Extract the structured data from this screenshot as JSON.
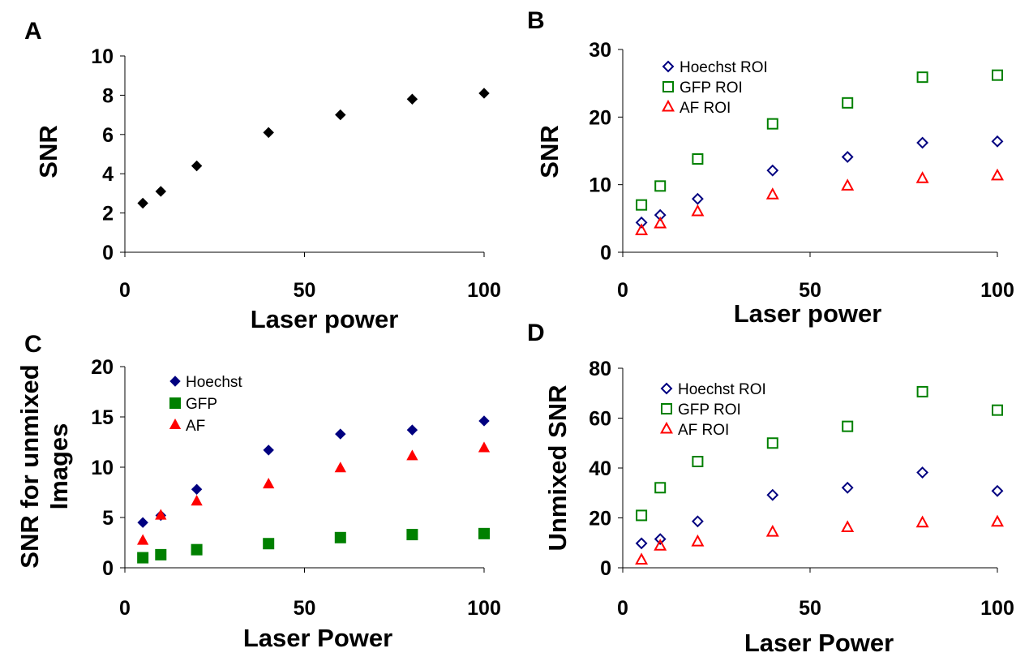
{
  "chart_data": [
    {
      "panel": "A",
      "type": "scatter",
      "xlabel": "Laser power",
      "ylabel": "SNR",
      "xlim": [
        0,
        100
      ],
      "ylim": [
        0,
        10
      ],
      "xticks": [
        "0",
        "50",
        "100"
      ],
      "yticks": [
        "0",
        "2",
        "4",
        "6",
        "8",
        "10"
      ],
      "series": [
        {
          "color": "#000000",
          "marker": "diamond-filled",
          "points": [
            [
              5,
              2.5
            ],
            [
              10,
              3.1
            ],
            [
              20,
              4.4
            ],
            [
              40,
              6.1
            ],
            [
              60,
              7.0
            ],
            [
              80,
              7.8
            ],
            [
              100,
              8.1
            ]
          ]
        }
      ]
    },
    {
      "panel": "B",
      "type": "scatter",
      "xlabel": "Laser power",
      "ylabel": "SNR",
      "xlim": [
        0,
        100
      ],
      "ylim": [
        0,
        30
      ],
      "xticks": [
        "0",
        "50",
        "100"
      ],
      "yticks": [
        "0",
        "10",
        "20",
        "30"
      ],
      "legend_position": "top-left",
      "series": [
        {
          "name": "Hoechst ROI",
          "color": "#000080",
          "marker": "diamond-open",
          "points": [
            [
              5,
              4.4
            ],
            [
              10,
              5.5
            ],
            [
              20,
              7.9
            ],
            [
              40,
              12.1
            ],
            [
              60,
              14.1
            ],
            [
              80,
              16.2
            ],
            [
              100,
              16.4
            ]
          ]
        },
        {
          "name": "GFP ROI",
          "color": "#008000",
          "marker": "square-open",
          "points": [
            [
              5,
              7.0
            ],
            [
              10,
              9.8
            ],
            [
              20,
              13.8
            ],
            [
              40,
              19.0
            ],
            [
              60,
              22.1
            ],
            [
              80,
              25.9
            ],
            [
              100,
              26.2
            ]
          ]
        },
        {
          "name": "AF ROI",
          "color": "#ff0000",
          "marker": "triangle-open",
          "points": [
            [
              5,
              3.2
            ],
            [
              10,
              4.2
            ],
            [
              20,
              6.0
            ],
            [
              40,
              8.5
            ],
            [
              60,
              9.8
            ],
            [
              80,
              10.9
            ],
            [
              100,
              11.3
            ]
          ]
        }
      ]
    },
    {
      "panel": "C",
      "type": "scatter",
      "xlabel": "Laser Power",
      "ylabel": "SNR for unmixed Images",
      "ylabel_lines": [
        "SNR for unmixed",
        "Images"
      ],
      "xlim": [
        0,
        100
      ],
      "ylim": [
        0,
        20
      ],
      "xticks": [
        "0",
        "50",
        "100"
      ],
      "yticks": [
        "0",
        "5",
        "10",
        "15",
        "20"
      ],
      "legend_position": "top-left",
      "series": [
        {
          "name": "Hoechst",
          "color": "#000080",
          "marker": "diamond-filled",
          "points": [
            [
              5,
              4.5
            ],
            [
              10,
              5.2
            ],
            [
              20,
              7.8
            ],
            [
              40,
              11.7
            ],
            [
              60,
              13.3
            ],
            [
              80,
              13.7
            ],
            [
              100,
              14.6
            ]
          ]
        },
        {
          "name": "GFP",
          "color": "#008000",
          "marker": "square-filled",
          "points": [
            [
              5,
              1.0
            ],
            [
              10,
              1.3
            ],
            [
              20,
              1.8
            ],
            [
              40,
              2.4
            ],
            [
              60,
              3.0
            ],
            [
              80,
              3.3
            ],
            [
              100,
              3.4
            ]
          ]
        },
        {
          "name": "AF",
          "color": "#ff0000",
          "marker": "triangle-filled",
          "points": [
            [
              5,
              2.7
            ],
            [
              10,
              5.2
            ],
            [
              20,
              6.6
            ],
            [
              40,
              8.3
            ],
            [
              60,
              9.9
            ],
            [
              80,
              11.1
            ],
            [
              100,
              11.9
            ]
          ]
        }
      ]
    },
    {
      "panel": "D",
      "type": "scatter",
      "xlabel": "Laser Power",
      "ylabel": "Unmixed SNR",
      "xlim": [
        0,
        100
      ],
      "ylim": [
        0,
        80
      ],
      "xticks": [
        "0",
        "50",
        "100"
      ],
      "yticks": [
        "0",
        "20",
        "40",
        "60",
        "80"
      ],
      "legend_position": "top-left",
      "series": [
        {
          "name": "Hoechst ROI",
          "color": "#000080",
          "marker": "diamond-open",
          "points": [
            [
              5,
              9.8
            ],
            [
              10,
              11.5
            ],
            [
              20,
              18.6
            ],
            [
              40,
              29.2
            ],
            [
              60,
              32.1
            ],
            [
              80,
              38.2
            ],
            [
              100,
              30.8
            ]
          ]
        },
        {
          "name": "GFP ROI",
          "color": "#008000",
          "marker": "square-open",
          "points": [
            [
              5,
              21.0
            ],
            [
              10,
              32.1
            ],
            [
              20,
              42.6
            ],
            [
              40,
              50.0
            ],
            [
              60,
              56.7
            ],
            [
              80,
              70.6
            ],
            [
              100,
              63.2
            ]
          ]
        },
        {
          "name": "AF ROI",
          "color": "#ff0000",
          "marker": "triangle-open",
          "points": [
            [
              5,
              3.1
            ],
            [
              10,
              8.7
            ],
            [
              20,
              10.4
            ],
            [
              40,
              14.3
            ],
            [
              60,
              16.1
            ],
            [
              80,
              18.0
            ],
            [
              100,
              18.3
            ]
          ]
        }
      ]
    }
  ]
}
